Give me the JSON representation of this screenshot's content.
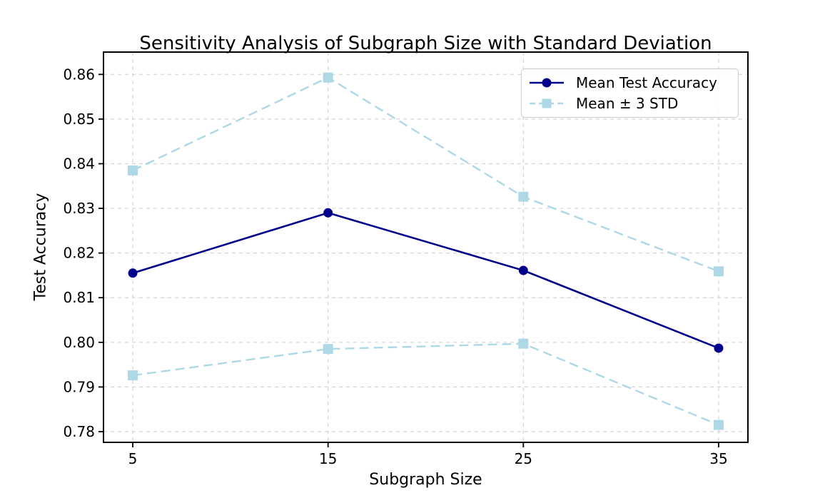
{
  "figure": {
    "background": "#ffffff"
  },
  "chart_data": {
    "type": "line",
    "title": "Sensitivity Analysis of Subgraph Size with Standard Deviation",
    "xlabel": "Subgraph Size",
    "ylabel": "Test Accuracy",
    "x": [
      5,
      15,
      25,
      35
    ],
    "xticks": [
      5,
      15,
      25,
      35
    ],
    "yticks": [
      0.78,
      0.79,
      0.8,
      0.81,
      0.82,
      0.83,
      0.84,
      0.85,
      0.86
    ],
    "xlim": [
      3.5,
      36.5
    ],
    "ylim": [
      0.7776,
      0.865
    ],
    "grid": true,
    "grid_color": "#d4d4d4",
    "axis_color": "#000000",
    "series": [
      {
        "id": "mean-test-accuracy",
        "name": "Mean Test Accuracy",
        "values": [
          0.8155,
          0.829,
          0.8161,
          0.7987
        ],
        "color": "#00008b",
        "style": "solid",
        "marker": "circle"
      },
      {
        "id": "mean-plus-3std",
        "name": "Mean + 3 STD",
        "values": [
          0.8385,
          0.8593,
          0.8326,
          0.8159
        ],
        "color": "#add8e6",
        "style": "dashed",
        "marker": "square"
      },
      {
        "id": "mean-minus-3std",
        "name": "Mean - 3 STD",
        "values": [
          0.7926,
          0.7985,
          0.7997,
          0.7815
        ],
        "color": "#add8e6",
        "style": "dashed",
        "marker": "square"
      }
    ],
    "legend": {
      "position": "upper right",
      "entries": [
        {
          "label": "Mean Test Accuracy"
        },
        {
          "label": "Mean ± 3 STD"
        }
      ]
    }
  }
}
